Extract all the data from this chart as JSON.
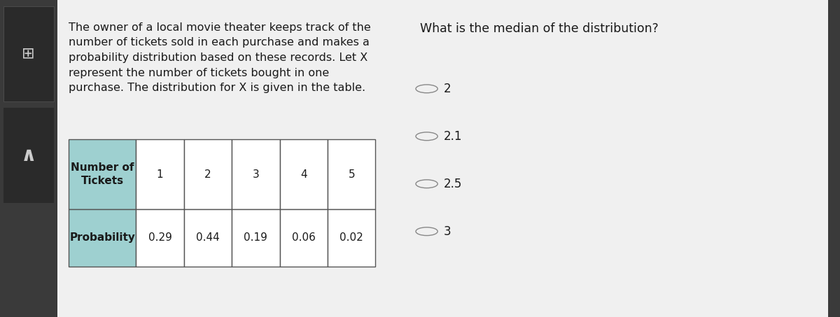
{
  "background_color": "#3a3a3a",
  "content_bg": "#f0f0f0",
  "paragraph_text": "The owner of a local movie theater keeps track of the\nnumber of tickets sold in each purchase and makes a\nprobability distribution based on these records. Let X\nrepresent the number of tickets bought in one\npurchase. The distribution for X is given in the table.",
  "question_text": "What is the median of the distribution?",
  "answer_choices": [
    "2",
    "2.1",
    "2.5",
    "3"
  ],
  "table_header_bg": "#9ed0d0",
  "table_row1_label": "Number of\nTickets",
  "table_row2_label": "Probability",
  "table_tickets": [
    "1",
    "2",
    "3",
    "4",
    "5"
  ],
  "table_probabilities": [
    "0.29",
    "0.44",
    "0.19",
    "0.06",
    "0.02"
  ],
  "font_size_paragraph": 11.5,
  "font_size_question": 12.5,
  "font_size_answer": 12,
  "font_size_table": 11,
  "text_color": "#1a1a1a",
  "circle_color": "#888888",
  "left_strip_color": "#3a3a3a",
  "icon_dark_bg": "#2a2a2a"
}
